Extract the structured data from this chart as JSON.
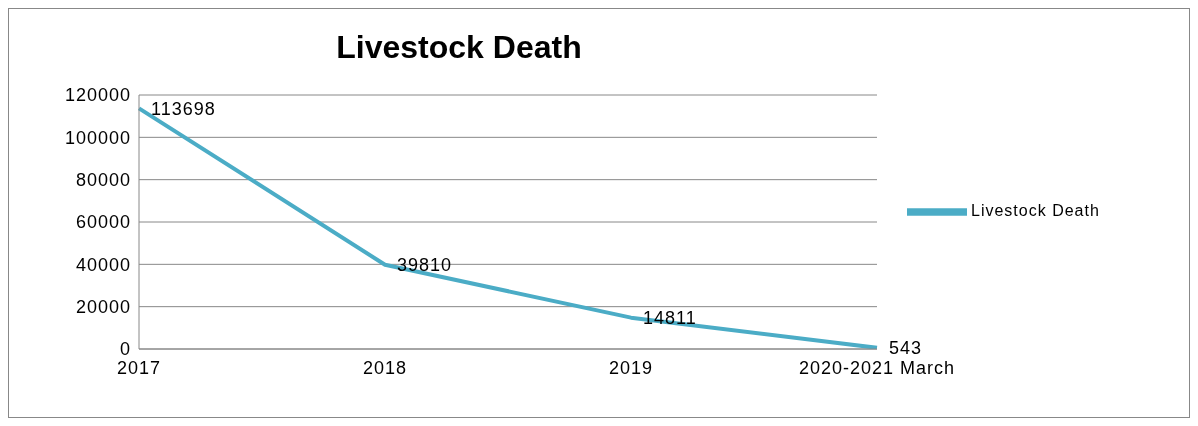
{
  "chart_data": {
    "type": "line",
    "title": "Livestock Death",
    "categories": [
      "2017",
      "2018",
      "2019",
      "2020-2021 March"
    ],
    "series": [
      {
        "name": "Livestock Death",
        "color": "#4bacc6",
        "values": [
          113698,
          39810,
          14811,
          543
        ]
      }
    ],
    "ylim": [
      0,
      120000
    ],
    "yticks": [
      0,
      20000,
      40000,
      60000,
      80000,
      100000,
      120000
    ],
    "grid": "y",
    "legend": "right",
    "marker": "none",
    "data_labels": true
  }
}
